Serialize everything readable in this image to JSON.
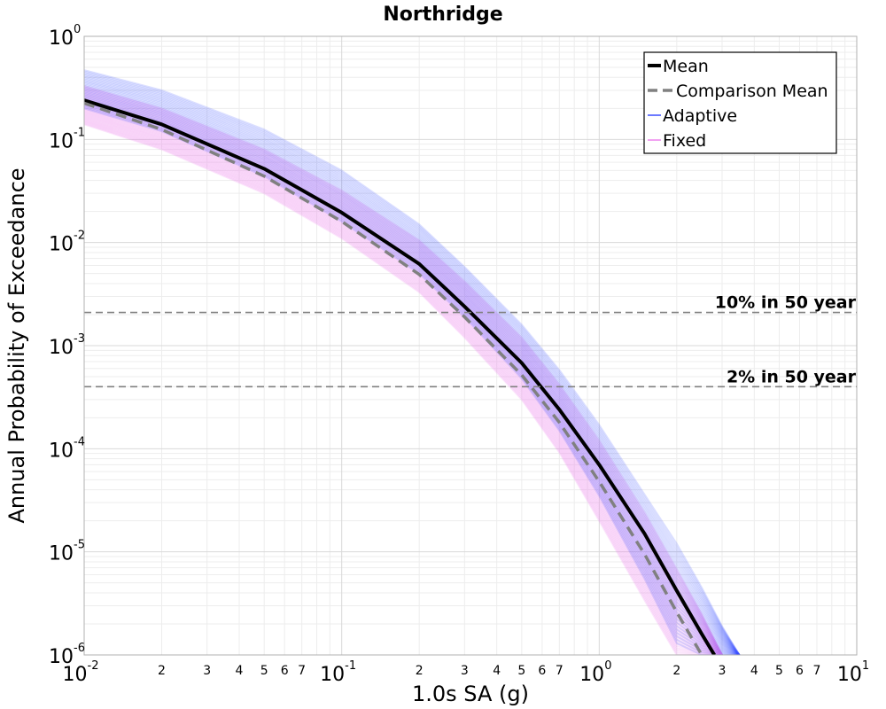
{
  "chart_data": {
    "type": "line",
    "title": "Northridge",
    "xlabel": "1.0s SA (g)",
    "ylabel": "Annual Probability of Exceedance",
    "xscale": "log",
    "yscale": "log",
    "xlim": [
      0.01,
      10
    ],
    "ylim": [
      1e-06,
      1
    ],
    "grid": true,
    "legend_position": "top-right",
    "x_major_ticks": [
      {
        "base": "10",
        "exp": "-2"
      },
      {
        "base": "10",
        "exp": "-1"
      },
      {
        "base": "10",
        "exp": "0"
      },
      {
        "base": "10",
        "exp": "1"
      }
    ],
    "y_major_ticks": [
      {
        "base": "10",
        "exp": "0"
      },
      {
        "base": "10",
        "exp": "-1"
      },
      {
        "base": "10",
        "exp": "-2"
      },
      {
        "base": "10",
        "exp": "-3"
      },
      {
        "base": "10",
        "exp": "-4"
      },
      {
        "base": "10",
        "exp": "-5"
      },
      {
        "base": "10",
        "exp": "-6"
      }
    ],
    "x_minor_labels": [
      "2",
      "3",
      "4",
      "5",
      "6",
      "7"
    ],
    "series": [
      {
        "name": "Mean",
        "color": "#000000",
        "style": "solid",
        "x": [
          0.01,
          0.02,
          0.05,
          0.1,
          0.2,
          0.3,
          0.5,
          0.7,
          1.0,
          1.5,
          2.0,
          2.5,
          2.8
        ],
        "y": [
          0.24,
          0.14,
          0.052,
          0.0195,
          0.0062,
          0.0024,
          0.00068,
          0.00024,
          7e-05,
          1.5e-05,
          4.2e-06,
          1.6e-06,
          1e-06
        ]
      },
      {
        "name": "Comparison Mean",
        "color": "#808080",
        "style": "dashed",
        "x": [
          0.01,
          0.02,
          0.05,
          0.1,
          0.2,
          0.3,
          0.5,
          0.7,
          1.0,
          1.5,
          2.0,
          2.5
        ],
        "y": [
          0.225,
          0.125,
          0.044,
          0.016,
          0.0049,
          0.0019,
          0.00052,
          0.00018,
          4.8e-05,
          9.5e-06,
          2.6e-06,
          1e-06
        ]
      },
      {
        "name": "Adaptive",
        "color": "#3a4dff",
        "style": "band"
      },
      {
        "name": "Fixed",
        "color": "#ee82ee",
        "style": "band"
      }
    ],
    "bands": {
      "adaptive": {
        "x": [
          0.01,
          0.02,
          0.05,
          0.1,
          0.2,
          0.3,
          0.5,
          0.7,
          1.0,
          1.5,
          2.0,
          2.5,
          3.0,
          3.5
        ],
        "upper": [
          0.47,
          0.3,
          0.125,
          0.05,
          0.015,
          0.0058,
          0.0016,
          0.00058,
          0.00017,
          3.6e-05,
          1.2e-05,
          4.5e-06,
          1.9e-06,
          1e-06
        ],
        "lower": [
          0.2,
          0.12,
          0.044,
          0.016,
          0.005,
          0.0019,
          0.00048,
          0.00015,
          3.5e-05,
          5.5e-06,
          1.3e-06,
          1e-06,
          1e-06,
          1e-06
        ]
      },
      "fixed": {
        "x": [
          0.01,
          0.02,
          0.05,
          0.1,
          0.2,
          0.3,
          0.5,
          0.7,
          1.0,
          1.5,
          2.0,
          2.5,
          3.0
        ],
        "upper": [
          0.33,
          0.2,
          0.08,
          0.032,
          0.0105,
          0.0042,
          0.0012,
          0.00042,
          0.00012,
          2.4e-05,
          6.8e-06,
          2.5e-06,
          1e-06
        ],
        "lower": [
          0.14,
          0.08,
          0.03,
          0.011,
          0.0033,
          0.0012,
          0.0003,
          9.2e-05,
          2e-05,
          3.4e-06,
          1e-06,
          1e-06,
          1e-06
        ]
      }
    },
    "annotations": [
      {
        "text": "10% in 50 year",
        "y": 0.0021
      },
      {
        "text": "2% in 50 year",
        "y": 0.0004
      }
    ]
  }
}
